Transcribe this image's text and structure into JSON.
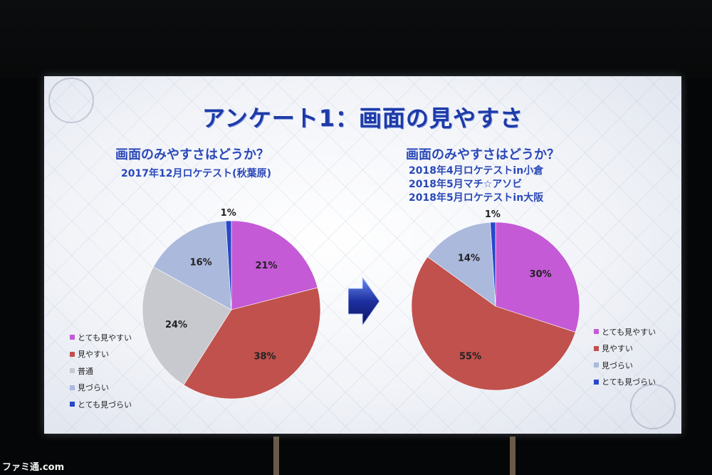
{
  "title": "アンケート1：画面の見やすさ",
  "watermark": "ファミ通.com",
  "left": {
    "question": "画面のみやすさはどうか？",
    "sources": [
      "2017年12月ロケテスト(秋葉原)"
    ]
  },
  "right": {
    "question": "画面のみやすさはどうか？",
    "sources": [
      "2018年4月ロケテストin小倉",
      "2018年5月マチ☆アソビ",
      "2018年5月ロケテストin大阪"
    ]
  },
  "colors": {
    "とても見やすい": "#c45ad6",
    "見やすい": "#c0514d",
    "普通": "#c8c9cf",
    "見づらい": "#aab9dc",
    "とても見づらい": "#2847c8"
  },
  "chart_data": [
    {
      "type": "pie",
      "title": "",
      "categories": [
        "とても見やすい",
        "見やすい",
        "普通",
        "見づらい",
        "とても見づらい"
      ],
      "values": [
        21,
        38,
        24,
        16,
        1
      ],
      "labels": [
        "21%",
        "38%",
        "24%",
        "16%",
        "1%"
      ],
      "legend": [
        "とても見やすい",
        "見やすい",
        "普通",
        "見づらい",
        "とても見づらい"
      ],
      "legend_position": "left"
    },
    {
      "type": "pie",
      "title": "",
      "categories": [
        "とても見やすい",
        "見やすい",
        "見づらい",
        "とても見づらい"
      ],
      "values": [
        30,
        55,
        14,
        1
      ],
      "labels": [
        "30%",
        "55%",
        "14%",
        "1%"
      ],
      "legend": [
        "とても見やすい",
        "見やすい",
        "見づらい",
        "とても見づらい"
      ],
      "legend_position": "right"
    }
  ]
}
